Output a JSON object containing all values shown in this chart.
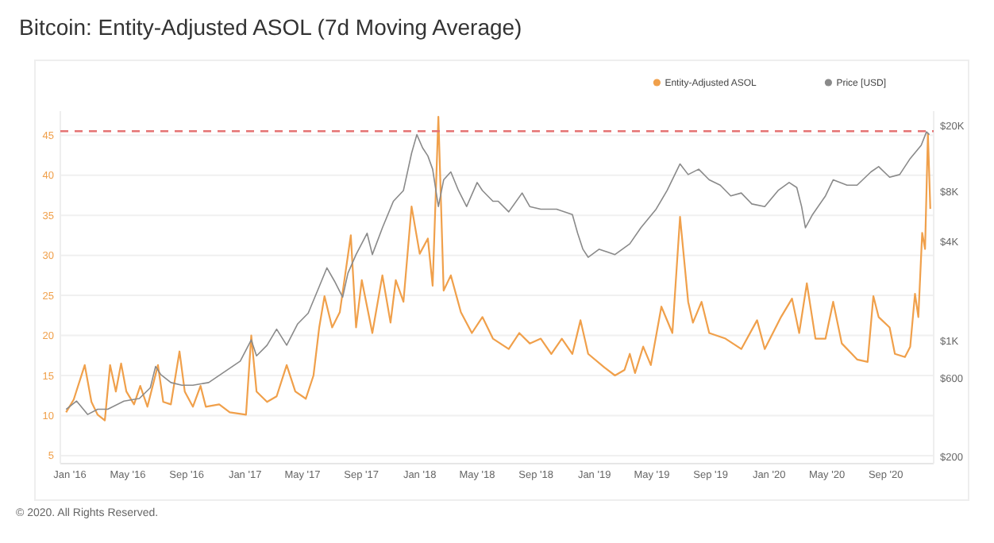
{
  "chart_data": {
    "type": "line",
    "title": "Bitcoin: Entity-Adjusted ASOL (7d Moving Average)",
    "annotations": [
      "© 2020. All Rights Reserved."
    ],
    "xlim": [
      "2015-12-12",
      "2020-12-10"
    ],
    "xticks": [
      {
        "value": "2016-01-01",
        "label": "Jan '16"
      },
      {
        "value": "2016-05-01",
        "label": "May '16"
      },
      {
        "value": "2016-09-01",
        "label": "Sep '16"
      },
      {
        "value": "2017-01-01",
        "label": "Jan '17"
      },
      {
        "value": "2017-05-01",
        "label": "May '17"
      },
      {
        "value": "2017-09-01",
        "label": "Sep '17"
      },
      {
        "value": "2018-01-01",
        "label": "Jan '18"
      },
      {
        "value": "2018-05-01",
        "label": "May '18"
      },
      {
        "value": "2018-09-01",
        "label": "Sep '18"
      },
      {
        "value": "2019-01-01",
        "label": "Jan '19"
      },
      {
        "value": "2019-05-01",
        "label": "May '19"
      },
      {
        "value": "2019-09-01",
        "label": "Sep '19"
      },
      {
        "value": "2020-01-01",
        "label": "Jan '20"
      },
      {
        "value": "2020-05-01",
        "label": "May '20"
      },
      {
        "value": "2020-09-01",
        "label": "Sep '20"
      }
    ],
    "ylim": [
      4,
      48
    ],
    "yticks": [
      5,
      10,
      15,
      20,
      25,
      30,
      35,
      40,
      45
    ],
    "y2lim": [
      183,
      24400
    ],
    "y2ticks": [
      {
        "value": 200,
        "label": "$200"
      },
      {
        "value": 600,
        "label": "$600"
      },
      {
        "value": 1000,
        "label": "$1K"
      },
      {
        "value": 4000,
        "label": "$4K"
      },
      {
        "value": 8000,
        "label": "$8K"
      },
      {
        "value": 20000,
        "label": "$20K"
      }
    ],
    "log": "y2",
    "grid": "y",
    "legend": "top right",
    "line_style": "solid",
    "marker": "none",
    "ref_lines": [
      {
        "axis": "y",
        "value": 45.5,
        "color": "#e57373",
        "line_style": "dashed"
      }
    ],
    "series": [
      {
        "name": "Entity-Adjusted ASOL",
        "color": "#f0a04b",
        "x": [
          "2015-12-24",
          "2016-01-09",
          "2016-02-01",
          "2016-02-15",
          "2016-02-28",
          "2016-03-14",
          "2016-03-25",
          "2016-04-06",
          "2016-04-17",
          "2016-04-28",
          "2016-05-14",
          "2016-05-27",
          "2016-06-11",
          "2016-07-03",
          "2016-07-14",
          "2016-07-30",
          "2016-08-17",
          "2016-08-28",
          "2016-09-14",
          "2016-09-30",
          "2016-10-11",
          "2016-11-08",
          "2016-11-30",
          "2017-01-03",
          "2017-01-14",
          "2017-01-25",
          "2017-02-16",
          "2017-03-08",
          "2017-03-29",
          "2017-04-16",
          "2017-05-08",
          "2017-05-24",
          "2017-06-05",
          "2017-06-16",
          "2017-07-02",
          "2017-07-18",
          "2017-08-10",
          "2017-08-21",
          "2017-09-02",
          "2017-09-24",
          "2017-10-15",
          "2017-11-01",
          "2017-11-12",
          "2017-11-28",
          "2017-12-15",
          "2018-01-01",
          "2018-01-18",
          "2018-01-28",
          "2018-02-09",
          "2018-02-20",
          "2018-03-07",
          "2018-03-28",
          "2018-04-20",
          "2018-05-12",
          "2018-06-03",
          "2018-07-06",
          "2018-07-28",
          "2018-08-19",
          "2018-09-11",
          "2018-10-03",
          "2018-10-25",
          "2018-11-16",
          "2018-12-03",
          "2018-12-19",
          "2019-01-22",
          "2019-02-13",
          "2019-03-05",
          "2019-03-16",
          "2019-03-27",
          "2019-04-13",
          "2019-04-29",
          "2019-05-21",
          "2019-06-13",
          "2019-06-29",
          "2019-07-16",
          "2019-07-26",
          "2019-08-13",
          "2019-08-29",
          "2019-10-02",
          "2019-11-04",
          "2019-12-07",
          "2019-12-23",
          "2020-01-26",
          "2020-02-18",
          "2020-03-04",
          "2020-03-20",
          "2020-04-07",
          "2020-04-28",
          "2020-05-14",
          "2020-06-01",
          "2020-06-22",
          "2020-07-03",
          "2020-07-25",
          "2020-08-06",
          "2020-08-17",
          "2020-09-09",
          "2020-09-20",
          "2020-10-11",
          "2020-10-22",
          "2020-11-01",
          "2020-11-08",
          "2020-11-16",
          "2020-11-22",
          "2020-11-28",
          "2020-12-03"
        ],
        "values": [
          10.4,
          12,
          16.3,
          11.7,
          10.1,
          9.4,
          16.3,
          13,
          16.5,
          13,
          11.4,
          13.7,
          11.1,
          16.3,
          11.7,
          11.4,
          18,
          13,
          11.1,
          13.7,
          11.1,
          11.4,
          10.4,
          10.1,
          20,
          13,
          11.7,
          12.4,
          16.3,
          13,
          12.1,
          15,
          21,
          24.9,
          21,
          22.9,
          32.5,
          21,
          26.9,
          20.3,
          27.5,
          21.6,
          26.9,
          24.2,
          36.1,
          30.2,
          32.1,
          26.2,
          47.3,
          25.6,
          27.5,
          22.9,
          20.3,
          22.3,
          19.6,
          18.3,
          20.3,
          19,
          19.6,
          17.7,
          19.6,
          17.7,
          21.9,
          17.7,
          16,
          15,
          15.7,
          17.7,
          15.3,
          18.6,
          16.3,
          23.6,
          20.3,
          34.8,
          24.2,
          21.6,
          24.2,
          20.3,
          19.6,
          18.3,
          21.9,
          18.3,
          22.3,
          24.6,
          20.3,
          26.5,
          19.6,
          19.6,
          24.2,
          19,
          17.7,
          17,
          16.7,
          24.9,
          22.3,
          21,
          17.7,
          17.3,
          18.6,
          25.2,
          22.3,
          32.8,
          30.8,
          45.2,
          35.8
        ]
      },
      {
        "name": "Price [USD]",
        "color": "#8a8a8a",
        "axis": "y2",
        "x": [
          "2015-12-24",
          "2016-01-15",
          "2016-02-07",
          "2016-02-28",
          "2016-03-20",
          "2016-04-23",
          "2016-05-25",
          "2016-06-17",
          "2016-06-28",
          "2016-07-09",
          "2016-07-30",
          "2016-08-22",
          "2016-09-14",
          "2016-10-17",
          "2016-11-19",
          "2016-12-22",
          "2017-01-14",
          "2017-01-25",
          "2017-02-16",
          "2017-03-08",
          "2017-03-29",
          "2017-04-21",
          "2017-05-13",
          "2017-06-05",
          "2017-06-21",
          "2017-07-07",
          "2017-07-24",
          "2017-08-04",
          "2017-08-21",
          "2017-09-13",
          "2017-09-24",
          "2017-10-15",
          "2017-11-07",
          "2017-11-28",
          "2017-12-15",
          "2017-12-26",
          "2018-01-07",
          "2018-01-18",
          "2018-01-28",
          "2018-02-09",
          "2018-02-20",
          "2018-03-07",
          "2018-03-23",
          "2018-04-09",
          "2018-05-01",
          "2018-05-12",
          "2018-06-03",
          "2018-06-14",
          "2018-07-06",
          "2018-08-03",
          "2018-08-19",
          "2018-09-11",
          "2018-10-14",
          "2018-11-16",
          "2018-11-27",
          "2018-12-08",
          "2018-12-19",
          "2019-01-11",
          "2019-02-13",
          "2019-03-16",
          "2019-04-08",
          "2019-05-10",
          "2019-06-02",
          "2019-06-29",
          "2019-07-16",
          "2019-08-07",
          "2019-08-29",
          "2019-09-21",
          "2019-10-13",
          "2019-11-04",
          "2019-11-26",
          "2019-12-23",
          "2020-01-20",
          "2020-02-12",
          "2020-02-28",
          "2020-03-09",
          "2020-03-17",
          "2020-04-01",
          "2020-04-28",
          "2020-05-14",
          "2020-06-12",
          "2020-07-03",
          "2020-08-01",
          "2020-08-17",
          "2020-09-09",
          "2020-09-30",
          "2020-10-22",
          "2020-11-14",
          "2020-11-25",
          "2020-12-01"
        ],
        "values": [
          389,
          436,
          362,
          389,
          389,
          436,
          452,
          524,
          705,
          630,
          564,
          543,
          543,
          564,
          654,
          759,
          1019,
          817,
          947,
          1183,
          947,
          1273,
          1476,
          2138,
          2770,
          2302,
          1845,
          2572,
          3333,
          4480,
          3333,
          4830,
          6990,
          8110,
          13610,
          17600,
          14660,
          13110,
          10900,
          6490,
          9400,
          10500,
          8110,
          6490,
          9060,
          8110,
          6990,
          6990,
          6030,
          7830,
          6490,
          6260,
          6260,
          5810,
          4480,
          3590,
          3210,
          3590,
          3333,
          3870,
          4830,
          6260,
          8110,
          11730,
          10120,
          10900,
          9400,
          8730,
          7530,
          7830,
          6730,
          6490,
          8110,
          9060,
          8450,
          6490,
          4830,
          5810,
          7530,
          9400,
          8730,
          8730,
          10500,
          11300,
          9750,
          10120,
          12640,
          15200,
          18300,
          17600
        ]
      }
    ]
  }
}
